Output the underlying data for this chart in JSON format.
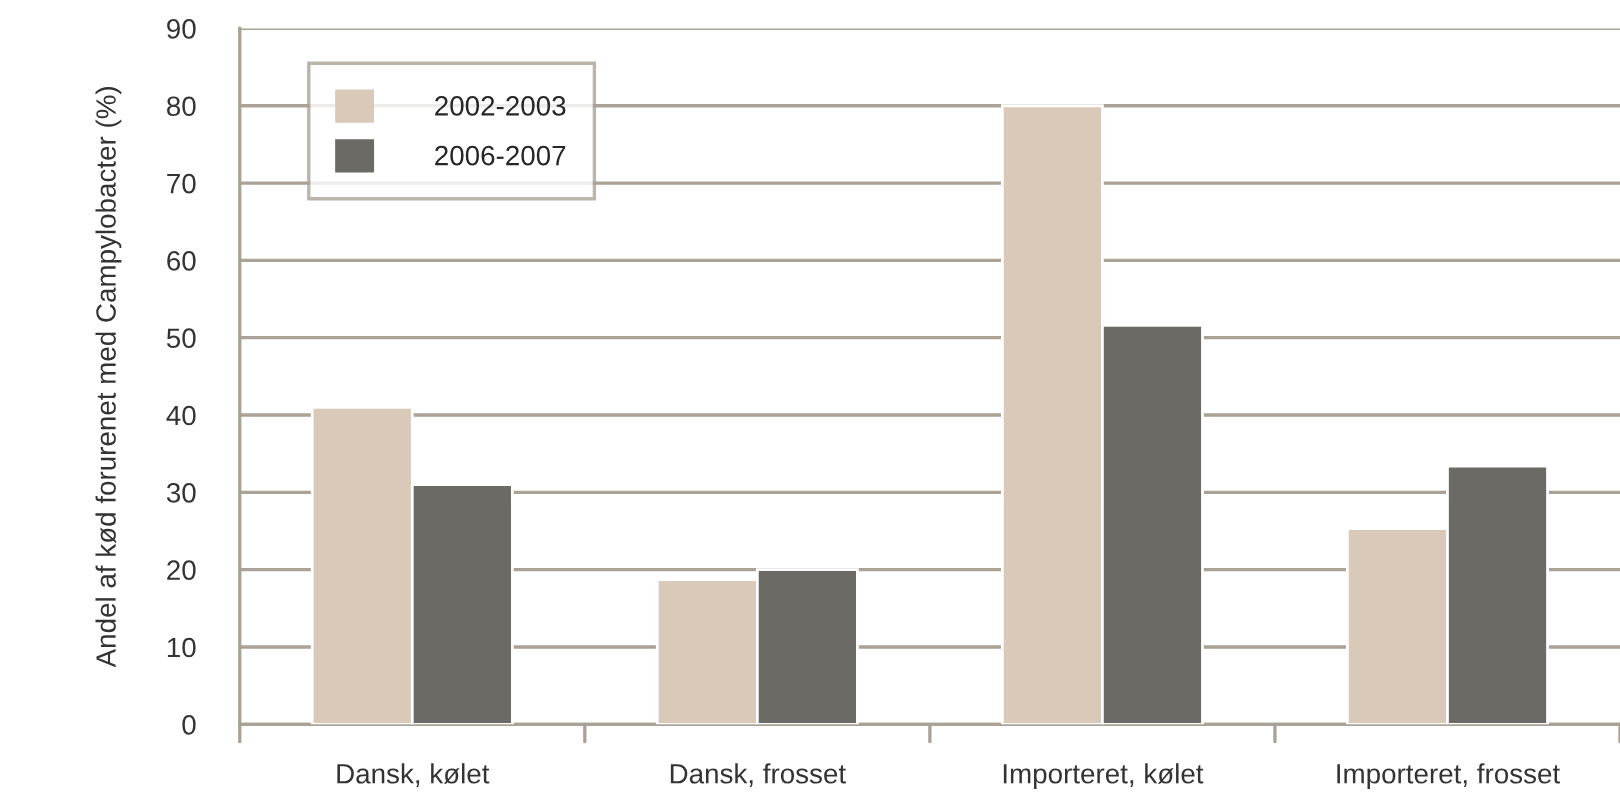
{
  "chart_data": {
    "type": "bar",
    "ylabel": "Andel af kød forurenet med Campylobacter (%)",
    "categories": [
      "Dansk, kølet",
      "Dansk, frosset",
      "Importeret, kølet",
      "Importeret, frosset"
    ],
    "series": [
      {
        "name": "2002-2003",
        "color": "#d9c9b9",
        "values": [
          41,
          18.7,
          80,
          25.3
        ]
      },
      {
        "name": "2006-2007",
        "color": "#6b6a64",
        "values": [
          31,
          20,
          51.6,
          33.4
        ]
      }
    ],
    "ylim": [
      0,
      90
    ],
    "yticks": [
      0,
      10,
      20,
      30,
      40,
      50,
      60,
      70,
      80,
      90
    ],
    "grid": "y",
    "legend": "top left"
  }
}
